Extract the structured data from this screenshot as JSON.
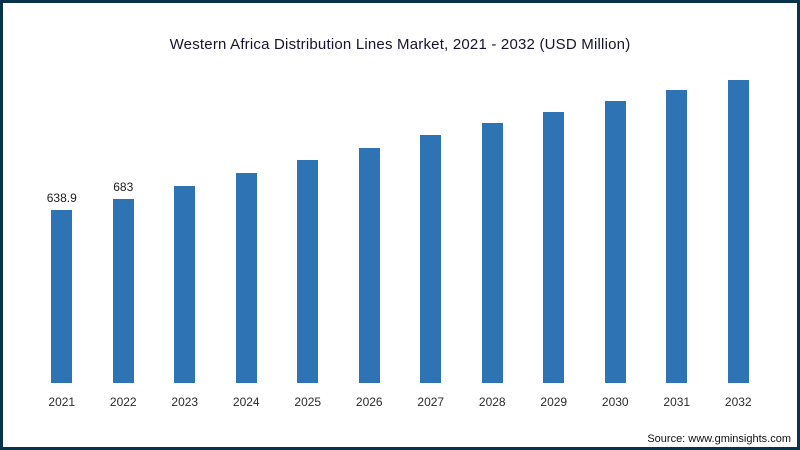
{
  "title": "Western Africa Distribution Lines Market, 2021 - 2032 (USD Million)",
  "source": {
    "label": "Source: www.gminsights.com"
  },
  "colors": {
    "bar": "#2e73b4",
    "frame": "#083349",
    "title_text": "#15152e"
  },
  "chart_data": {
    "type": "bar",
    "title": "Western Africa Distribution Lines Market, 2021 - 2032 (USD Million)",
    "xlabel": "",
    "ylabel": "USD Million",
    "ylim": [
      0,
      1200
    ],
    "grid": false,
    "legend": "none",
    "categories": [
      "2021",
      "2022",
      "2023",
      "2024",
      "2025",
      "2026",
      "2027",
      "2028",
      "2029",
      "2030",
      "2031",
      "2032"
    ],
    "values": [
      638.9,
      683,
      730,
      778,
      825,
      872,
      918,
      962,
      1004,
      1046,
      1086,
      1124
    ],
    "data_labels": [
      "638.9",
      "683",
      "",
      "",
      "",
      "",
      "",
      "",
      "",
      "",
      "",
      ""
    ]
  }
}
